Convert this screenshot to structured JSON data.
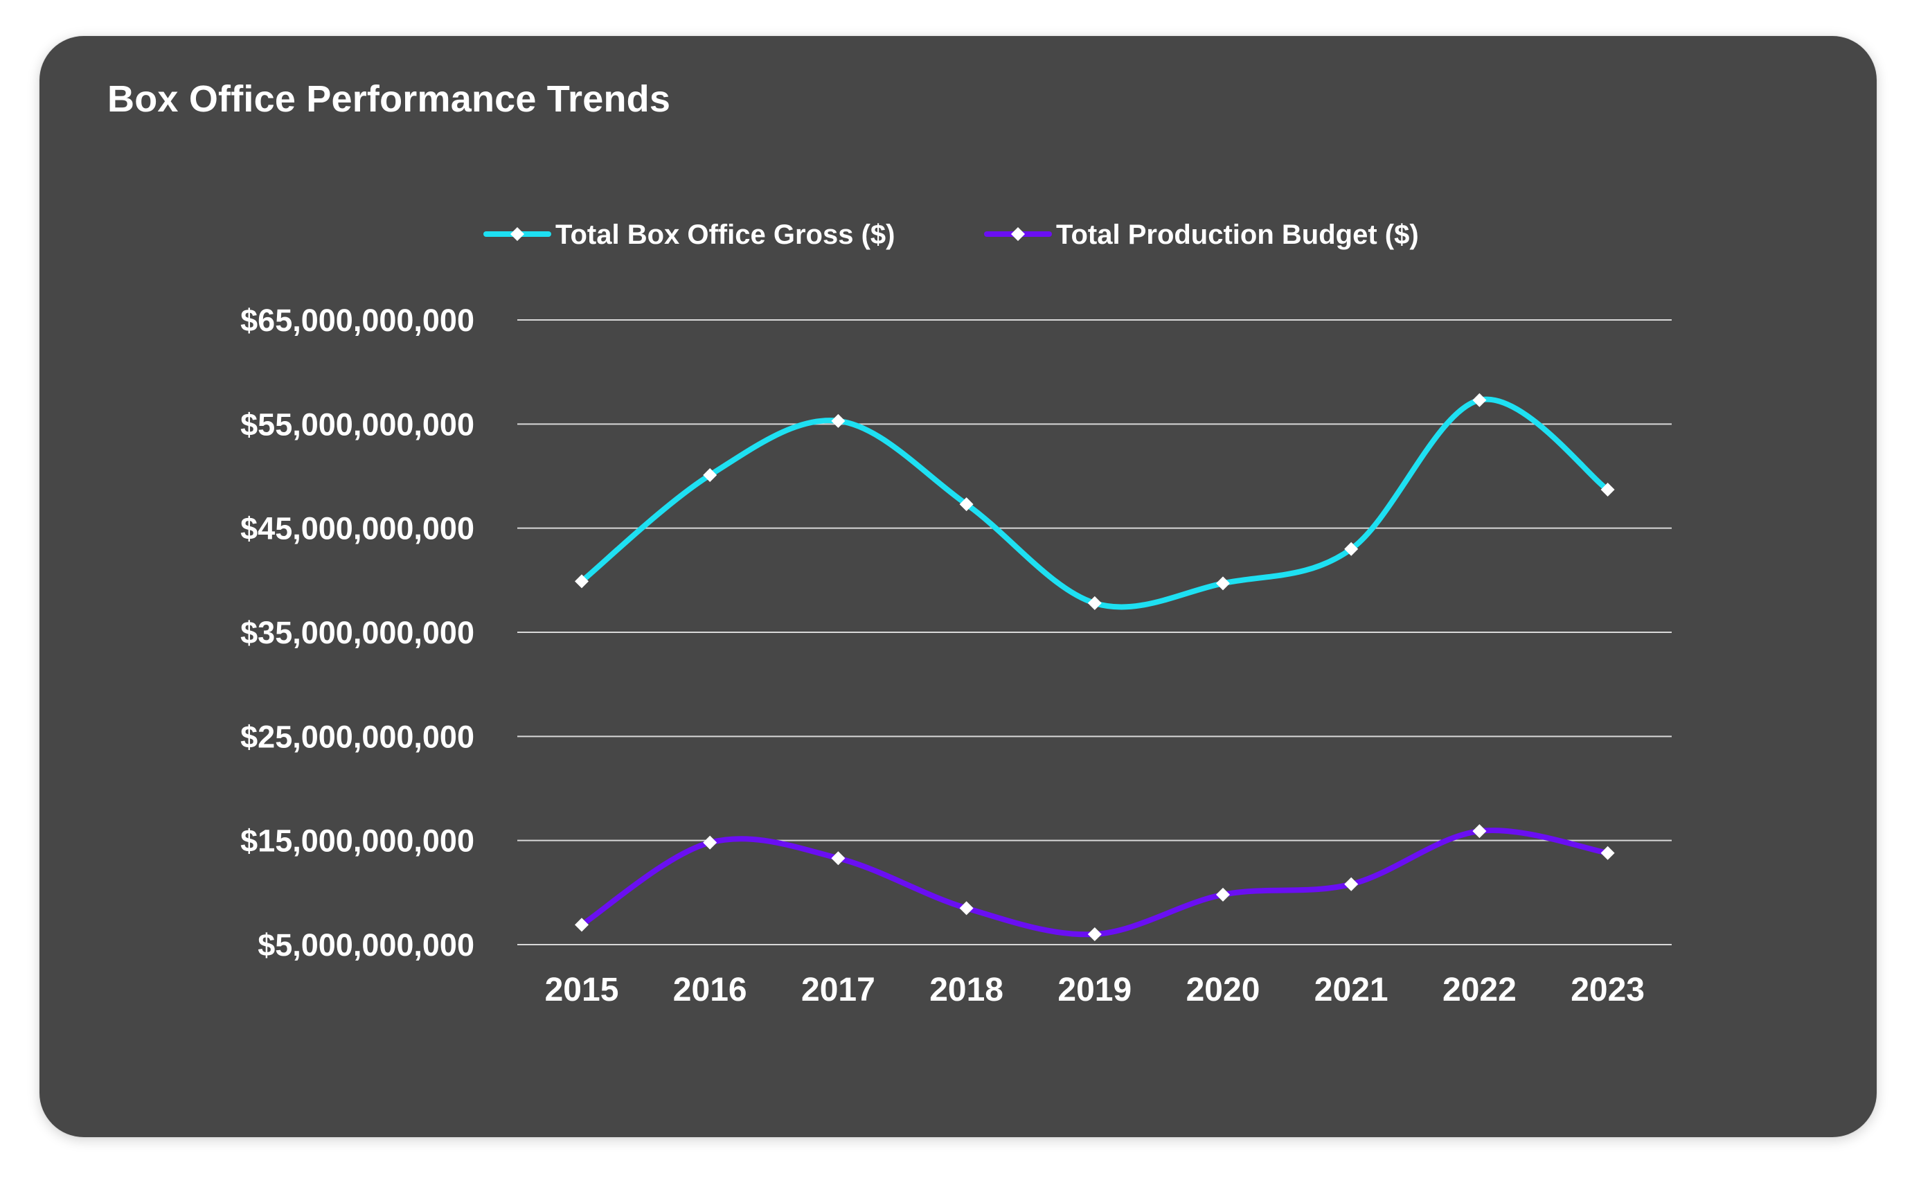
{
  "chart_data": {
    "type": "line",
    "title": "Box Office Performance Trends",
    "categories": [
      "2015",
      "2016",
      "2017",
      "2018",
      "2019",
      "2020",
      "2021",
      "2022",
      "2023"
    ],
    "series": [
      {
        "name": "Total Box Office Gross ($)",
        "color": "#1ee0f2",
        "values": [
          39900000000,
          50100000000,
          55300000000,
          47300000000,
          37800000000,
          39700000000,
          43000000000,
          57300000000,
          48700000000
        ]
      },
      {
        "name": "Total Production Budget ($)",
        "color": "#6a0ff2",
        "values": [
          6900000000,
          14800000000,
          13300000000,
          8500000000,
          6000000000,
          9800000000,
          10800000000,
          15900000000,
          13800000000
        ]
      }
    ],
    "y_ticks": [
      "$65,000,000,000",
      "$55,000,000,000",
      "$45,000,000,000",
      "$35,000,000,000",
      "$25,000,000,000",
      "$15,000,000,000",
      "$5,000,000,000"
    ],
    "y_tick_values": [
      65000000000,
      55000000000,
      45000000000,
      35000000000,
      25000000000,
      15000000000,
      5000000000
    ],
    "ylim": [
      5000000000,
      65000000000
    ],
    "grid": true,
    "legend_position": "top",
    "marker": "diamond",
    "marker_color": "#ffffff",
    "line_style": "smooth"
  }
}
